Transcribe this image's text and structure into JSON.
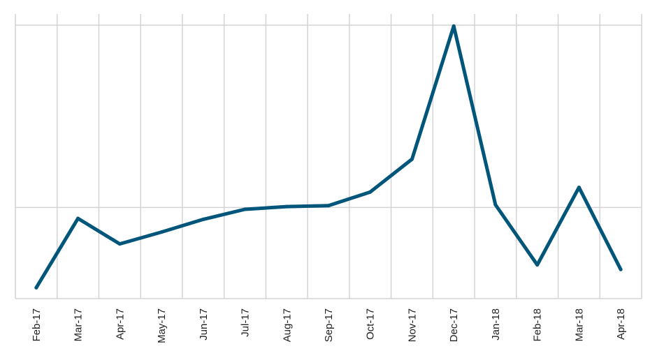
{
  "chart_data": {
    "type": "line",
    "title": "",
    "xlabel": "",
    "ylabel": "",
    "categories": [
      "Feb-17",
      "Mar-17",
      "Apr-17",
      "May-17",
      "Jun-17",
      "Jul-17",
      "Aug-17",
      "Sep-17",
      "Oct-17",
      "Nov-17",
      "Dec-17",
      "Jan-18",
      "Feb-18",
      "Mar-18",
      "Apr-18"
    ],
    "series": [
      {
        "values": [
          0.12,
          0.88,
          0.6,
          0.73,
          0.87,
          0.98,
          1.01,
          1.02,
          1.17,
          1.53,
          2.99,
          1.03,
          0.37,
          1.22,
          0.32
        ]
      }
    ],
    "ylim": [
      0,
      3.2
    ],
    "yticks": [
      0,
      1,
      2,
      3
    ],
    "grid": {
      "vertical": true,
      "horizontal_at": [
        0,
        1,
        3
      ]
    },
    "legend": "none",
    "colors": {
      "line": "#00567a",
      "grid": "#d4d4d4",
      "text": "#222222"
    }
  }
}
